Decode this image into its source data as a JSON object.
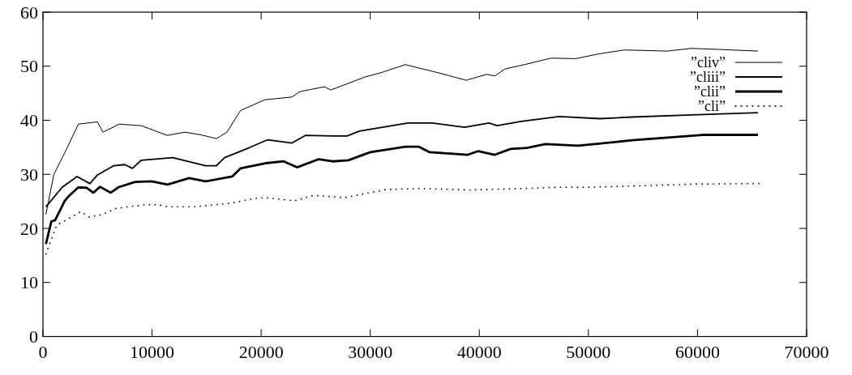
{
  "chart_data": {
    "type": "line",
    "xlim": [
      0,
      70000
    ],
    "ylim": [
      0,
      60
    ],
    "xticks": [
      0,
      10000,
      20000,
      30000,
      40000,
      50000,
      60000,
      70000
    ],
    "yticks": [
      0,
      10,
      20,
      30,
      40,
      50,
      60
    ],
    "grid": false,
    "legend": "top right",
    "series": [
      {
        "name": "”cliv”",
        "color": "#000000",
        "line_style": "solid",
        "x": [
          270,
          1000,
          2000,
          3250,
          4980,
          5500,
          7000,
          9000,
          11400,
          13000,
          14500,
          15900,
          16870,
          18100,
          20340,
          22820,
          23560,
          25790,
          26390,
          29510,
          30990,
          33220,
          34190,
          36200,
          38800,
          40660,
          41400,
          42370,
          44150,
          46600,
          48830,
          51000,
          53290,
          57230,
          59450,
          62000,
          65540
        ],
        "values": [
          22.6,
          30,
          34,
          39.3,
          39.7,
          37.8,
          39.3,
          39,
          37.2,
          37.8,
          37.3,
          36.6,
          37.8,
          41.8,
          43.8,
          44.3,
          45.3,
          46.2,
          45.6,
          48,
          48.8,
          50.3,
          49.8,
          48.8,
          47.4,
          48.5,
          48.2,
          49.5,
          50.3,
          51.5,
          51.4,
          52.3,
          53,
          52.8,
          53.3,
          53.1,
          52.8
        ]
      },
      {
        "name": "”cliii”",
        "color": "#000000",
        "line_style": "solid",
        "x": [
          270,
          1760,
          3120,
          4300,
          5000,
          6500,
          7500,
          8200,
          9000,
          11900,
          14900,
          15900,
          16650,
          18870,
          20600,
          22820,
          24060,
          26540,
          27880,
          29000,
          33450,
          35680,
          38650,
          40880,
          41620,
          43850,
          47330,
          51050,
          54000,
          59450,
          65540
        ],
        "values": [
          24,
          27.6,
          29.6,
          28.3,
          29.9,
          31.6,
          31.8,
          31.1,
          32.6,
          33.1,
          31.6,
          31.6,
          33.1,
          34.9,
          36.4,
          35.8,
          37.2,
          37.1,
          37.1,
          38,
          39.5,
          39.5,
          38.7,
          39.5,
          39,
          39.8,
          40.7,
          40.3,
          40.6,
          41,
          41.4
        ]
      },
      {
        "name": "”clii”",
        "color": "#000000",
        "line_style": "solid",
        "x": [
          270,
          770,
          1110,
          2000,
          2380,
          3250,
          4000,
          4610,
          5230,
          6220,
          6900,
          8450,
          9940,
          11420,
          13400,
          14900,
          17350,
          18100,
          20570,
          22060,
          23290,
          25290,
          26540,
          28000,
          30010,
          33230,
          34470,
          35450,
          38910,
          39900,
          41380,
          42870,
          44350,
          46060,
          49050,
          54020,
          60460,
          65540
        ],
        "values": [
          17.1,
          21.3,
          21.5,
          25.1,
          26,
          27.6,
          27.5,
          26.6,
          27.7,
          26.6,
          27.6,
          28.6,
          28.7,
          28.1,
          29.3,
          28.7,
          29.6,
          31.1,
          32.1,
          32.4,
          31.3,
          32.8,
          32.4,
          32.6,
          34.1,
          35.1,
          35.1,
          34.1,
          33.6,
          34.3,
          33.6,
          34.7,
          34.9,
          35.6,
          35.3,
          36.3,
          37.3,
          37.3
        ]
      },
      {
        "name": "”cli”",
        "color": "#000000",
        "line_style": "dotted",
        "x": [
          270,
          1260,
          2000,
          3470,
          4230,
          5500,
          6700,
          9440,
          10500,
          11440,
          14000,
          17350,
          19300,
          20330,
          23050,
          24790,
          27620,
          29480,
          31460,
          34430,
          39160,
          44100,
          47200,
          50000,
          54750,
          59720,
          65620
        ],
        "values": [
          15.3,
          20.6,
          21.4,
          23.1,
          22.1,
          22.6,
          23.7,
          24.4,
          24.4,
          24,
          24,
          24.7,
          25.5,
          25.7,
          25.1,
          26.1,
          25.7,
          26.4,
          27.2,
          27.4,
          27.1,
          27.4,
          27.6,
          27.6,
          27.9,
          28.2,
          28.3
        ]
      }
    ]
  }
}
